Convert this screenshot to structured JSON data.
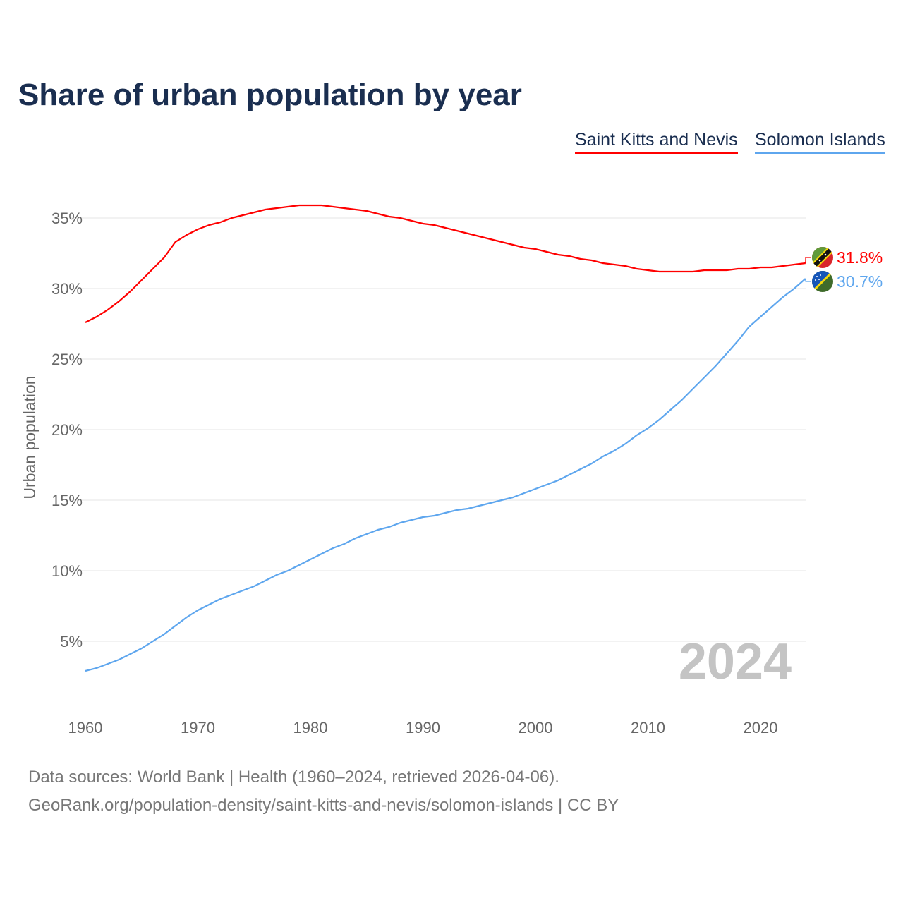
{
  "chart_data": {
    "type": "line",
    "title": "Share of urban population by year",
    "ylabel": "Urban population",
    "xlabel": "",
    "xlim": [
      1960,
      2024
    ],
    "ylim": [
      0,
      37
    ],
    "grid": true,
    "legend_placement": "top-right",
    "x_ticks": [
      1960,
      1970,
      1980,
      1990,
      2000,
      2010,
      2020
    ],
    "y_ticks": [
      5,
      10,
      15,
      20,
      25,
      30,
      35
    ],
    "y_tick_labels": [
      "5%",
      "10%",
      "15%",
      "20%",
      "25%",
      "30%",
      "35%"
    ],
    "x_tick_labels": [
      "1960",
      "1970",
      "1980",
      "1990",
      "2000",
      "2010",
      "2020"
    ],
    "year_label": "2024",
    "x": [
      1960,
      1961,
      1962,
      1963,
      1964,
      1965,
      1966,
      1967,
      1968,
      1969,
      1970,
      1971,
      1972,
      1973,
      1974,
      1975,
      1976,
      1977,
      1978,
      1979,
      1980,
      1981,
      1982,
      1983,
      1984,
      1985,
      1986,
      1987,
      1988,
      1989,
      1990,
      1991,
      1992,
      1993,
      1994,
      1995,
      1996,
      1997,
      1998,
      1999,
      2000,
      2001,
      2002,
      2003,
      2004,
      2005,
      2006,
      2007,
      2008,
      2009,
      2010,
      2011,
      2012,
      2013,
      2014,
      2015,
      2016,
      2017,
      2018,
      2019,
      2020,
      2021,
      2022,
      2023,
      2024
    ],
    "series": [
      {
        "name": "Saint Kitts and Nevis",
        "color": "#ff0000",
        "end_label": "31.8%",
        "values": [
          27.6,
          28.0,
          28.5,
          29.1,
          29.8,
          30.6,
          31.4,
          32.2,
          33.3,
          33.8,
          34.2,
          34.5,
          34.7,
          35.0,
          35.2,
          35.4,
          35.6,
          35.7,
          35.8,
          35.9,
          35.9,
          35.9,
          35.8,
          35.7,
          35.6,
          35.5,
          35.3,
          35.1,
          35.0,
          34.8,
          34.6,
          34.5,
          34.3,
          34.1,
          33.9,
          33.7,
          33.5,
          33.3,
          33.1,
          32.9,
          32.8,
          32.6,
          32.4,
          32.3,
          32.1,
          32.0,
          31.8,
          31.7,
          31.6,
          31.4,
          31.3,
          31.2,
          31.2,
          31.2,
          31.2,
          31.3,
          31.3,
          31.3,
          31.4,
          31.4,
          31.5,
          31.5,
          31.6,
          31.7,
          31.8
        ]
      },
      {
        "name": "Solomon Islands",
        "color": "#5ea6ee",
        "end_label": "30.7%",
        "values": [
          2.9,
          3.1,
          3.4,
          3.7,
          4.1,
          4.5,
          5.0,
          5.5,
          6.1,
          6.7,
          7.2,
          7.6,
          8.0,
          8.3,
          8.6,
          8.9,
          9.3,
          9.7,
          10.0,
          10.4,
          10.8,
          11.2,
          11.6,
          11.9,
          12.3,
          12.6,
          12.9,
          13.1,
          13.4,
          13.6,
          13.8,
          13.9,
          14.1,
          14.3,
          14.4,
          14.6,
          14.8,
          15.0,
          15.2,
          15.5,
          15.8,
          16.1,
          16.4,
          16.8,
          17.2,
          17.6,
          18.1,
          18.5,
          19.0,
          19.6,
          20.1,
          20.7,
          21.4,
          22.1,
          22.9,
          23.7,
          24.5,
          25.4,
          26.3,
          27.3,
          28.0,
          28.7,
          29.4,
          30.0,
          30.7
        ]
      }
    ]
  },
  "source": {
    "line1": "Data sources: World Bank | Health (1960–2024, retrieved 2026-04-06).",
    "line2": "GeoRank.org/population-density/saint-kitts-and-nevis/solomon-islands | CC BY"
  }
}
